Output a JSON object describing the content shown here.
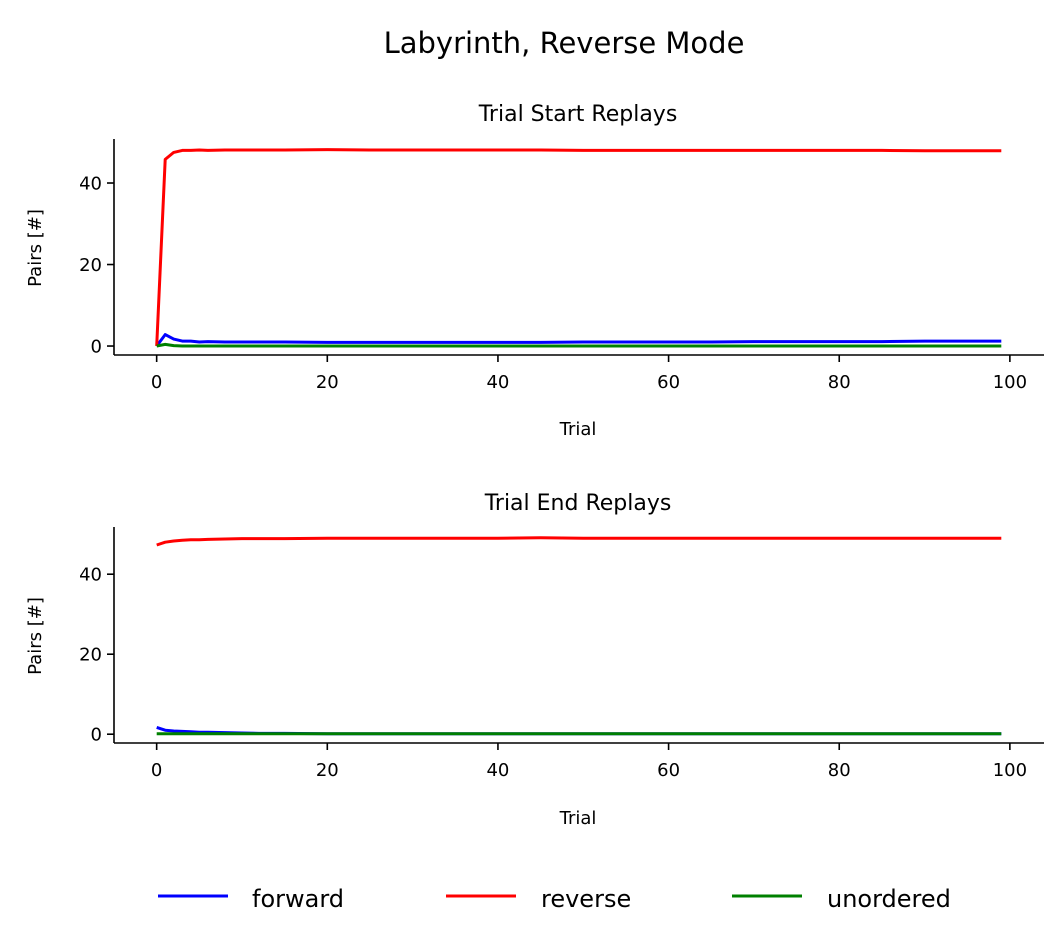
{
  "figure": {
    "suptitle": "Labyrinth, Reverse Mode"
  },
  "legend": {
    "placement": "bottom-center",
    "entries": [
      {
        "name": "forward",
        "color": "#0000ff"
      },
      {
        "name": "reverse",
        "color": "#ff0000"
      },
      {
        "name": "unordered",
        "color": "#008000"
      }
    ]
  },
  "chart_data": [
    {
      "type": "line",
      "title": "Trial Start Replays",
      "xlabel": "Trial",
      "ylabel": "Pairs [#]",
      "xlim": [
        -5,
        104
      ],
      "ylim": [
        -2.2,
        50.8
      ],
      "xticks": [
        0,
        20,
        40,
        60,
        80,
        100
      ],
      "yticks": [
        0,
        20,
        40
      ],
      "grid": false,
      "series": [
        {
          "name": "forward",
          "color": "#0000ff",
          "x": [
            0,
            1,
            2,
            3,
            4,
            5,
            6,
            8,
            10,
            15,
            20,
            25,
            30,
            35,
            40,
            45,
            50,
            55,
            60,
            65,
            70,
            75,
            80,
            85,
            90,
            95,
            99
          ],
          "y": [
            0.0,
            2.8,
            1.7,
            1.2,
            1.2,
            1.0,
            1.1,
            1.0,
            1.0,
            1.0,
            0.9,
            0.9,
            0.9,
            0.9,
            0.9,
            0.9,
            1.0,
            1.0,
            1.0,
            1.0,
            1.1,
            1.1,
            1.1,
            1.1,
            1.2,
            1.2,
            1.2
          ]
        },
        {
          "name": "reverse",
          "color": "#ff0000",
          "x": [
            0,
            1,
            2,
            3,
            4,
            5,
            6,
            8,
            10,
            15,
            20,
            25,
            30,
            35,
            40,
            45,
            50,
            55,
            60,
            65,
            70,
            75,
            80,
            85,
            90,
            95,
            99
          ],
          "y": [
            0.0,
            45.8,
            47.5,
            48.0,
            48.0,
            48.1,
            48.0,
            48.1,
            48.1,
            48.1,
            48.2,
            48.1,
            48.1,
            48.1,
            48.1,
            48.1,
            48.0,
            48.0,
            48.0,
            48.0,
            48.0,
            48.0,
            48.0,
            48.0,
            47.9,
            47.9,
            47.9
          ]
        },
        {
          "name": "unordered",
          "color": "#008000",
          "x": [
            0,
            1,
            2,
            3,
            5,
            10,
            20,
            40,
            60,
            80,
            99
          ],
          "y": [
            0.0,
            0.4,
            0.1,
            0.0,
            0.0,
            0.0,
            0.0,
            0.0,
            0.0,
            0.0,
            0.0
          ]
        }
      ]
    },
    {
      "type": "line",
      "title": "Trial End Replays",
      "xlabel": "Trial",
      "ylabel": "Pairs [#]",
      "xlim": [
        -5,
        104
      ],
      "ylim": [
        -2.2,
        51.8
      ],
      "xticks": [
        0,
        20,
        40,
        60,
        80,
        100
      ],
      "yticks": [
        0,
        20,
        40
      ],
      "grid": false,
      "series": [
        {
          "name": "forward",
          "color": "#0000ff",
          "x": [
            0,
            1,
            2,
            3,
            4,
            5,
            6,
            8,
            10,
            12,
            15,
            20,
            30,
            40,
            50,
            60,
            70,
            80,
            90,
            99
          ],
          "y": [
            1.7,
            1.0,
            0.8,
            0.7,
            0.6,
            0.5,
            0.5,
            0.4,
            0.3,
            0.2,
            0.2,
            0.1,
            0.1,
            0.1,
            0.1,
            0.1,
            0.1,
            0.1,
            0.1,
            0.1
          ]
        },
        {
          "name": "reverse",
          "color": "#ff0000",
          "x": [
            0,
            1,
            2,
            3,
            4,
            5,
            6,
            8,
            10,
            15,
            20,
            25,
            30,
            35,
            40,
            45,
            50,
            55,
            60,
            65,
            70,
            75,
            80,
            85,
            90,
            95,
            99
          ],
          "y": [
            47.3,
            48.0,
            48.3,
            48.5,
            48.6,
            48.6,
            48.7,
            48.8,
            48.9,
            48.9,
            49.0,
            49.0,
            49.0,
            49.0,
            49.0,
            49.1,
            49.0,
            49.0,
            49.0,
            49.0,
            49.0,
            49.0,
            49.0,
            49.0,
            49.0,
            49.0,
            49.0
          ]
        },
        {
          "name": "unordered",
          "color": "#008000",
          "x": [
            0,
            1,
            5,
            10,
            20,
            40,
            60,
            80,
            99
          ],
          "y": [
            0.1,
            0.1,
            0.1,
            0.1,
            0.1,
            0.1,
            0.1,
            0.1,
            0.1
          ]
        }
      ]
    }
  ]
}
